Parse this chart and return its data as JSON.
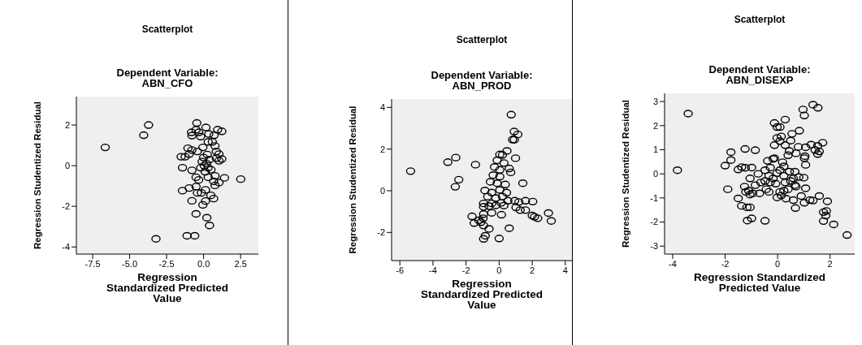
{
  "chart_data": [
    {
      "type": "scatter",
      "title": "Scatterplot",
      "subtitle": "Dependent Variable: ABN_CFO",
      "xlabel": "Regression Standardized Predicted Value",
      "ylabel": "Regression Studentized Residual",
      "marker": "circle",
      "color": "#000000",
      "xlim": [
        -8.6,
        3.7
      ],
      "xticks": [
        -7.5,
        {
          "value": -5,
          "label": "-5.0"
        },
        -2.5,
        {
          "value": 0,
          "label": "0.0"
        },
        2.5
      ],
      "ylim": [
        -4.35,
        3.4
      ],
      "yticks": [
        -4,
        -2,
        0,
        2
      ],
      "x": [
        -6.65,
        -3.72,
        -4.05,
        -3.22,
        -1.12,
        -0.6,
        -0.46,
        0.16,
        -0.82,
        -0.51,
        -0.33,
        -0.79,
        -0.2,
        0.35,
        0.71,
        0.95,
        1.23,
        0.31,
        0.59,
        0.77,
        -1.06,
        -0.79,
        -0.97,
        -1.25,
        -1.52,
        -0.42,
        -0.05,
        0.86,
        1.04,
        0.86,
        1.04,
        1.23,
        0.04,
        0.2,
        0.3,
        0.1,
        -0.1,
        0.4,
        0.5,
        -0.2,
        0.0,
        0.25,
        -1.43,
        -0.79,
        -0.51,
        -0.33,
        0.31,
        0.77,
        1.41,
        2.51,
        0.68,
        1.04,
        0.77,
        -1.43,
        -0.97,
        -0.51,
        -0.42,
        -0.15,
        0.13,
        0.49,
        0.68,
        -0.79,
        0.13,
        -0.05,
        -0.51,
        0.22,
        0.4
      ],
      "values": [
        0.9,
        2.0,
        1.5,
        -3.6,
        -3.45,
        -3.45,
        2.1,
        1.88,
        1.64,
        1.77,
        1.64,
        1.48,
        1.43,
        1.56,
        1.5,
        1.77,
        1.69,
        1.17,
        1.17,
        0.97,
        0.86,
        0.77,
        0.57,
        0.44,
        0.44,
        0.7,
        0.9,
        0.7,
        0.57,
        0.37,
        0.24,
        0.33,
        0.0,
        0.1,
        -0.1,
        -0.3,
        0.2,
        0.3,
        -0.2,
        -0.1,
        0.4,
        0.55,
        -0.1,
        -0.23,
        -0.57,
        -0.7,
        -0.57,
        -0.5,
        -0.6,
        -0.66,
        -0.77,
        -0.83,
        -0.97,
        -1.23,
        -1.1,
        -1.03,
        -1.34,
        -1.34,
        -1.19,
        -1.46,
        -1.62,
        -1.73,
        -1.74,
        -1.93,
        -2.37,
        -2.56,
        -2.94
      ]
    },
    {
      "type": "scatter",
      "title": "Scatterplot",
      "subtitle": "Dependent Variable: ABN_PROD",
      "xlabel": "Regression Standardized Predicted Value",
      "ylabel": "Regression Studentized Residual",
      "marker": "circle",
      "color": "#000000",
      "xlim": [
        -6.5,
        4.4
      ],
      "xticks": [
        -6,
        -4,
        -2,
        0,
        2,
        4
      ],
      "ylim": [
        -3.35,
        4.4
      ],
      "yticks": [
        -2,
        0,
        2,
        4
      ],
      "x": [
        -5.35,
        -3.1,
        -2.62,
        -2.44,
        -2.65,
        -1.43,
        0.73,
        0.91,
        1.13,
        0.81,
        0.92,
        0.47,
        0.99,
        0.04,
        0.2,
        -0.12,
        0.29,
        -0.28,
        0.04,
        0.61,
        0.7,
        -0.36,
        0.04,
        -0.53,
        -0.12,
        1.43,
        0.37,
        -0.86,
        -0.45,
        0.04,
        0.45,
        -0.69,
        -0.2,
        0.2,
        -0.94,
        -0.45,
        0.12,
        0.53,
        -0.94,
        -0.61,
        -0.2,
        0.29,
        0.94,
        1.19,
        1.59,
        2.03,
        1.02,
        1.27,
        1.59,
        2.0,
        2.14,
        2.33,
        -0.45,
        0.14,
        -0.94,
        -0.97,
        -1.64,
        -1.51,
        -1.23,
        -1.1,
        -0.94,
        -0.61,
        0.61,
        -0.84,
        -0.94,
        0.0,
        2.98,
        3.15
      ],
      "values": [
        0.94,
        1.37,
        1.59,
        0.53,
        0.19,
        1.25,
        3.65,
        2.84,
        2.7,
        2.45,
        2.45,
        1.91,
        1.56,
        1.74,
        1.72,
        1.46,
        1.33,
        1.14,
        1.0,
        1.07,
        0.88,
        0.75,
        0.68,
        0.43,
        0.36,
        0.36,
        0.3,
        0.01,
        -0.09,
        0.04,
        -0.09,
        -0.28,
        -0.35,
        -0.28,
        -0.61,
        -0.61,
        -0.58,
        -0.48,
        -0.77,
        -0.74,
        -0.7,
        -0.71,
        -0.48,
        -0.54,
        -0.48,
        -0.52,
        -0.8,
        -0.93,
        -0.93,
        -1.19,
        -1.25,
        -1.32,
        -1.06,
        -1.15,
        -1.12,
        -1.32,
        -1.23,
        -1.55,
        -1.42,
        -1.51,
        -1.67,
        -1.83,
        -1.8,
        -2.16,
        -2.31,
        -2.29,
        -1.07,
        -1.45
      ]
    },
    {
      "type": "scatter",
      "title": "Scatterplot",
      "subtitle": "Dependent Variable: ABN_DISEXP",
      "xlabel": "Regression Standardized Predicted Value",
      "ylabel": "Regression Studentized Residual",
      "marker": "circle",
      "color": "#000000",
      "xlim": [
        -4.31,
        2.94
      ],
      "xticks": [
        -4,
        -2,
        0,
        2
      ],
      "ylim": [
        -3.33,
        3.34
      ],
      "yticks": [
        -3,
        -2,
        -1,
        0,
        1,
        2,
        3
      ],
      "x": [
        -3.82,
        -3.41,
        -2.0,
        -1.78,
        -1.78,
        -1.9,
        -1.24,
        -0.85,
        -1.5,
        -1.37,
        -1.17,
        -1.05,
        -1.15,
        -0.99,
        -0.48,
        -1.5,
        -1.37,
        -1.23,
        -0.99,
        -1.05,
        -0.74,
        -0.48,
        -0.28,
        -1.26,
        -1.1,
        -0.95,
        -0.69,
        -1.21,
        -1.05,
        -0.85,
        -0.64,
        -0.43,
        -0.33,
        -0.38,
        -0.17,
        -0.12,
        -0.33,
        -0.17,
        -0.02,
        0.09,
        0.24,
        -0.48,
        -0.28,
        -0.07,
        0.19,
        0.24,
        -0.12,
        -0.02,
        0.09,
        0.29,
        -0.02,
        0.14,
        0.09,
        0.29,
        -0.12,
        0.5,
        0.55,
        0.83,
        0.45,
        0.4,
        0.7,
        0.79,
        1.02,
        1.04,
        1.07,
        1.07,
        1.28,
        1.43,
        1.59,
        1.53,
        1.72,
        1.53,
        0.97,
        1.02,
        1.35,
        1.54,
        0.45,
        0.66,
        0.6,
        0.29,
        0.5,
        0.66,
        0.81,
        1.0,
        0.09,
        0.24,
        0.4,
        -0.02,
        0.14,
        0.32,
        0.6,
        0.68,
        0.7,
        0.9,
        1.02,
        1.07,
        1.23,
        1.35,
        1.59,
        1.9,
        1.75,
        1.86,
        1.84,
        1.75,
        2.14,
        2.65
      ],
      "values": [
        0.15,
        2.5,
        0.34,
        0.9,
        0.57,
        -0.64,
        1.03,
        0.98,
        -1.02,
        -1.33,
        -1.39,
        -1.39,
        -1.94,
        -1.85,
        -1.95,
        0.18,
        0.28,
        0.25,
        0.26,
        -0.19,
        0.0,
        0.15,
        0.26,
        -0.53,
        -0.7,
        -0.81,
        -0.81,
        -0.75,
        -0.86,
        -0.47,
        -0.36,
        -0.64,
        -0.75,
        0.54,
        0.62,
        0.65,
        -0.08,
        -0.19,
        0.03,
        0.15,
        -0.08,
        -0.3,
        -0.36,
        -0.41,
        0.48,
        0.31,
        2.11,
        1.94,
        1.94,
        2.25,
        1.49,
        1.55,
        1.36,
        1.19,
        1.19,
        1.38,
        1.66,
        1.79,
        0.95,
        0.77,
        0.85,
        1.12,
        0.65,
        0.73,
        0.37,
        1.1,
        1.21,
        0.99,
        0.93,
        1.16,
        1.29,
        0.82,
        2.67,
        2.42,
        2.87,
        2.74,
        0.09,
        0.09,
        -0.19,
        -0.36,
        -0.3,
        -0.47,
        -0.13,
        -0.16,
        -0.75,
        -0.7,
        -0.64,
        -0.98,
        -0.9,
        -1.03,
        -1.09,
        -1.42,
        -0.53,
        -0.92,
        -1.2,
        -0.6,
        -1.09,
        -1.11,
        -0.92,
        -1.14,
        -1.59,
        -1.54,
        -1.73,
        -1.96,
        -2.1,
        -2.54
      ]
    }
  ]
}
